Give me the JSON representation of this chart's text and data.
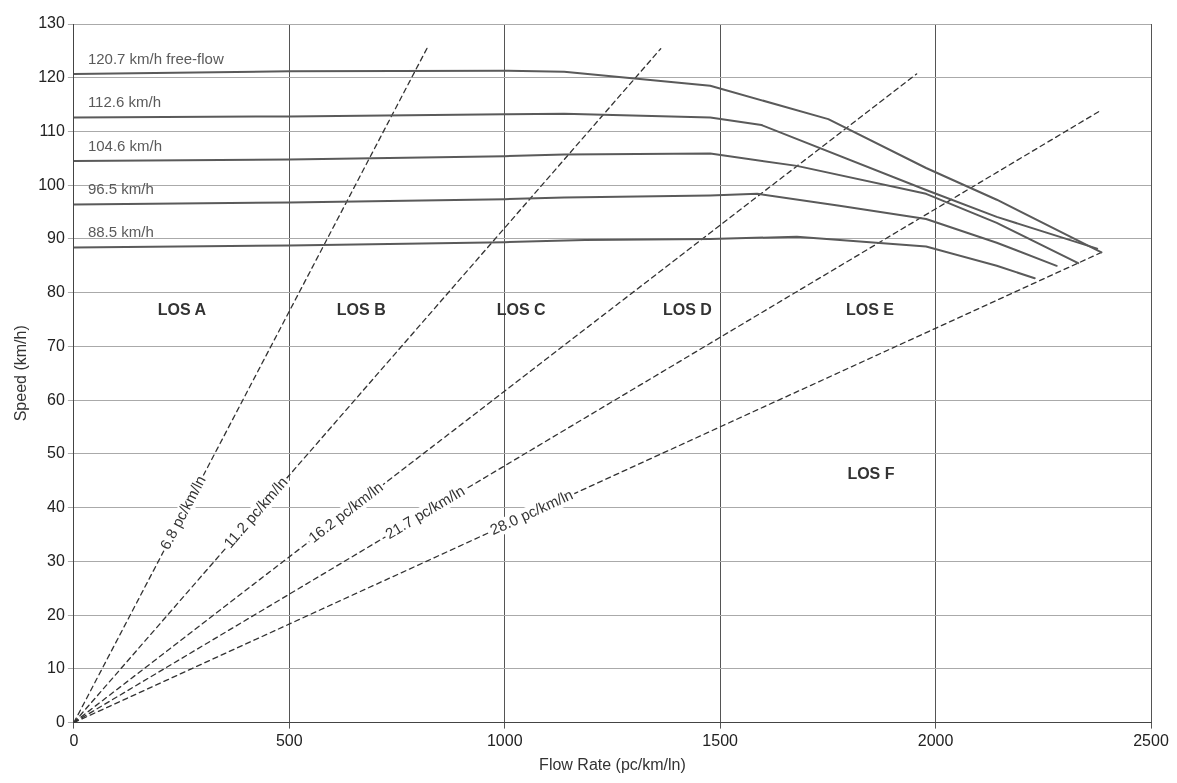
{
  "chart_data": {
    "type": "line",
    "xlabel": "Flow Rate (pc/km/ln)",
    "ylabel": "Speed (km/h)",
    "xlim": [
      0,
      2500
    ],
    "xticks": [
      0,
      500,
      1000,
      1500,
      2000,
      2500
    ],
    "ylim": [
      0,
      130
    ],
    "yticks": [
      0,
      10,
      20,
      30,
      40,
      50,
      60,
      70,
      80,
      90,
      100,
      110,
      120,
      130
    ],
    "grid": true,
    "legend": false,
    "marker": "none",
    "series": [
      {
        "name": "120.7 km/h free-flow",
        "color": "#5a5a5a",
        "line_style": "solid",
        "x": [
          0,
          500,
          1000,
          1138,
          1477,
          1751,
          1978,
          2142,
          2385
        ],
        "values": [
          120.7,
          121.2,
          121.3,
          121.1,
          118.5,
          112.3,
          103.2,
          97.3,
          87.5
        ]
      },
      {
        "name": "112.6 km/h",
        "color": "#5a5a5a",
        "line_style": "solid",
        "x": [
          0,
          500,
          1000,
          1138,
          1477,
          1596,
          1978,
          2142,
          2375
        ],
        "values": [
          112.6,
          112.8,
          113.2,
          113.3,
          112.6,
          111.2,
          99.1,
          94.1,
          88.2
        ]
      },
      {
        "name": "104.6 km/h",
        "color": "#5a5a5a",
        "line_style": "solid",
        "x": [
          0,
          500,
          1000,
          1138,
          1477,
          1678,
          1978,
          2142,
          2331
        ],
        "values": [
          104.5,
          104.8,
          105.4,
          105.7,
          105.9,
          103.6,
          98.4,
          93,
          85.5
        ]
      },
      {
        "name": "96.5 km/h",
        "color": "#5a5a5a",
        "line_style": "solid",
        "x": [
          0,
          500,
          1000,
          1138,
          1477,
          1586,
          1777,
          1978,
          2142,
          2281
        ],
        "values": [
          96.4,
          96.8,
          97.4,
          97.7,
          98.1,
          98.4,
          96.2,
          93.7,
          89.3,
          85
        ]
      },
      {
        "name": "88.5 km/h",
        "color": "#5a5a5a",
        "line_style": "solid",
        "x": [
          0,
          500,
          1000,
          1186,
          1477,
          1678,
          1978,
          2142,
          2230
        ],
        "values": [
          88.4,
          88.8,
          89.4,
          89.8,
          90,
          90.4,
          88.6,
          85,
          82.7
        ]
      },
      {
        "name": "6.8 pc/km/ln",
        "color": "#333333",
        "line_style": "dashed",
        "x": [
          0,
          823
        ],
        "values": [
          0,
          126
        ]
      },
      {
        "name": "11.2 pc/km/ln",
        "color": "#333333",
        "line_style": "dashed",
        "x": [
          0,
          1362
        ],
        "values": [
          0,
          125.4
        ]
      },
      {
        "name": "16.2 pc/km/ln",
        "color": "#333333",
        "line_style": "dashed",
        "x": [
          0,
          1956
        ],
        "values": [
          0,
          120.7
        ]
      },
      {
        "name": "21.7 pc/km/ln",
        "color": "#333333",
        "line_style": "dashed",
        "x": [
          0,
          2381
        ],
        "values": [
          0,
          113.8
        ]
      },
      {
        "name": "28.0 pc/km/ln",
        "color": "#333333",
        "line_style": "dashed",
        "x": [
          0,
          2385
        ],
        "values": [
          0,
          87.5
        ]
      }
    ],
    "annotations": [
      "LOS A",
      "LOS B",
      "LOS C",
      "LOS D",
      "LOS E",
      "LOS F"
    ]
  }
}
